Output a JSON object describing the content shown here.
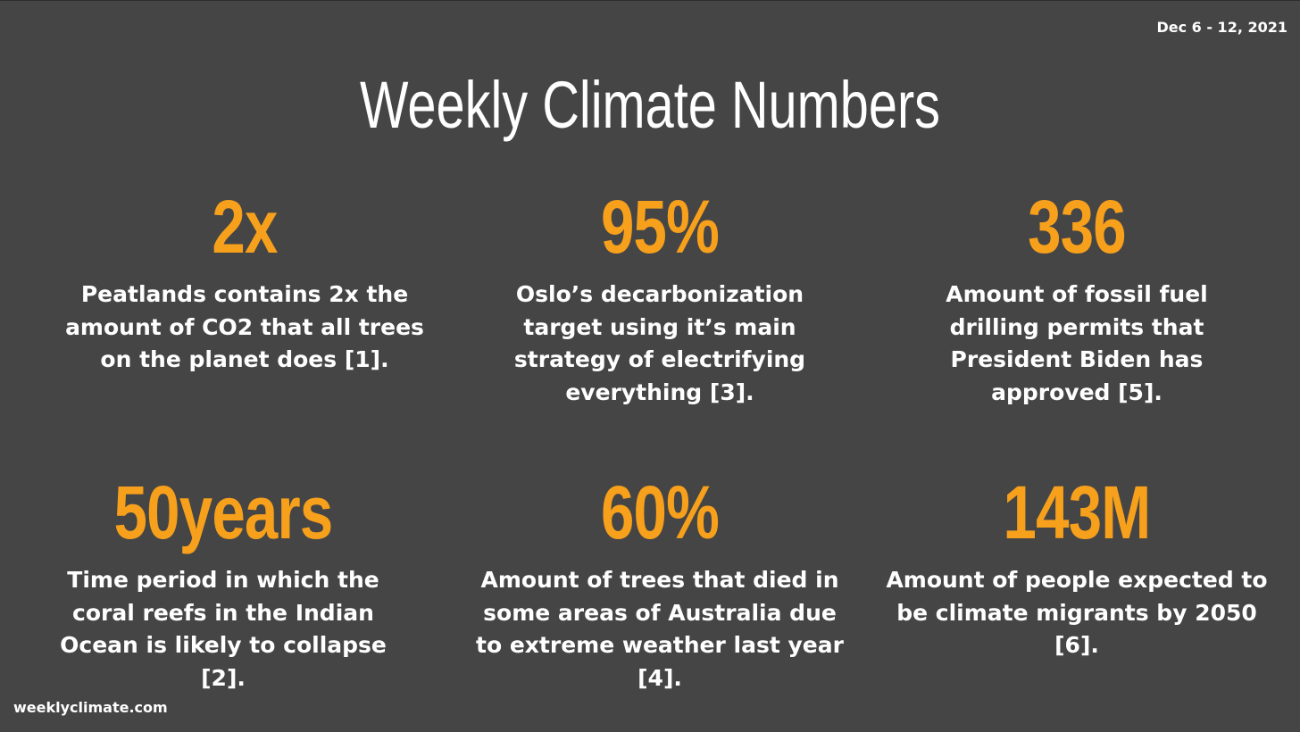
{
  "header": {
    "date_range": "Dec 6 - 12, 2021",
    "title": "Weekly Climate Numbers"
  },
  "stats": [
    {
      "value": "2x",
      "description": "Peatlands contains 2x the amount of CO2 that all trees on the planet does [1]."
    },
    {
      "value": "95%",
      "description": "Oslo’s decarbonization target using it’s main strategy of electrifying everything [3]."
    },
    {
      "value": "336",
      "description": "Amount of fossil fuel drilling permits that President Biden has approved [5]."
    },
    {
      "value": "50years",
      "description": "Time period in which the coral reefs in the Indian Ocean is likely to collapse [2]."
    },
    {
      "value": "60%",
      "description": "Amount of trees that died in some areas of Australia due to extreme weather last year [4]."
    },
    {
      "value": "143M",
      "description": "Amount of people expected to be climate migrants by 2050 [6]."
    }
  ],
  "footer": {
    "site": "weeklyclimate.com"
  },
  "colors": {
    "background": "#454545",
    "accent": "#f7a01b",
    "text": "#ffffff"
  }
}
